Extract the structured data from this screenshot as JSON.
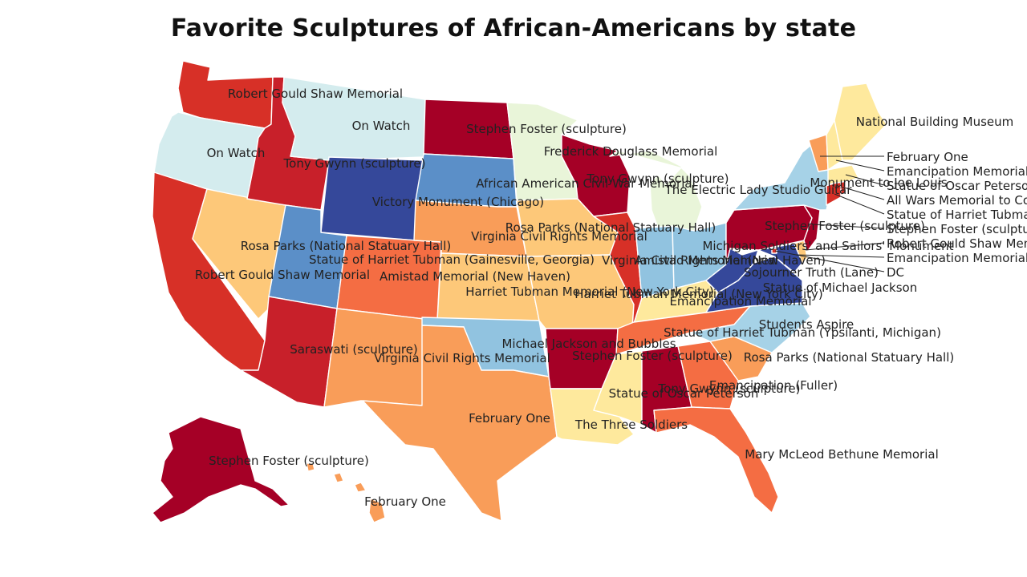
{
  "title": "Favorite Sculptures of African-Americans by state",
  "colors": {
    "dark_red": "#a50026",
    "red": "#d73027",
    "red2": "#c8202a",
    "orange_red": "#f46d43",
    "orange": "#f99d59",
    "light_orange": "#fdc879",
    "pale_yellow": "#fee99d",
    "pale_green": "#e9f5d9",
    "pale_blue": "#d4ecee",
    "light_blue": "#a6d2e7",
    "sky_blue": "#91c3e0",
    "mid_blue": "#5b8fc8",
    "dark_blue": "#35489a"
  },
  "states": {
    "WA": {
      "label": "Robert Gould Shaw Memorial",
      "color": "red"
    },
    "OR": {
      "label": "On Watch",
      "color": "pale_blue"
    },
    "CA": {
      "label": "Robert Gould Shaw Memorial",
      "color": "red"
    },
    "ID": {
      "label": "Tony Gwynn (sculpture)",
      "color": "red2"
    },
    "NV": {
      "label": "Rosa Parks (National Statuary Hall)",
      "color": "light_orange"
    },
    "MT": {
      "label": "On Watch",
      "color": "pale_blue"
    },
    "WY": {
      "label": "Victory Monument (Chicago)",
      "color": "dark_blue"
    },
    "UT": {
      "label": "Statue of Harriet Tubman (Gainesville, Georgia)",
      "color": "mid_blue"
    },
    "AZ": {
      "label": "Saraswati (sculpture)",
      "color": "red2"
    },
    "CO": {
      "label": "Amistad Memorial (New Haven)",
      "color": "orange_red"
    },
    "NM": {
      "label": "Virginia Civil Rights Memorial",
      "color": "orange"
    },
    "ND": {
      "label": "Stephen Foster (sculpture)",
      "color": "dark_red"
    },
    "SD": {
      "label": "African American Civil War Memorial",
      "color": "mid_blue"
    },
    "NE": {
      "label": "Virginia Civil Rights Memorial",
      "color": "orange"
    },
    "KS": {
      "label": "Harriet Tubman Memorial (New York City)",
      "color": "light_orange"
    },
    "OK": {
      "label": "Michael Jackson and Bubbles",
      "color": "sky_blue"
    },
    "TX": {
      "label": "February One",
      "color": "orange"
    },
    "MN": {
      "label": "Frederick Douglass Memorial",
      "color": "pale_green"
    },
    "IA": {
      "label": "Rosa Parks (National Statuary Hall)",
      "color": "light_orange"
    },
    "MO": {
      "label": "Harriet Tubman Memorial (New York City)",
      "color": "light_orange"
    },
    "AR": {
      "label": "Stephen Foster (sculpture)",
      "color": "dark_red"
    },
    "LA": {
      "label": "The Three Soldiers",
      "color": "pale_yellow"
    },
    "WI": {
      "label": "Tony Gwynn (sculpture)",
      "color": "dark_red"
    },
    "IL": {
      "label": "Virginia Civil Rights Memorial",
      "color": "red"
    },
    "MI": {
      "label": "The Electric Lady Studio Guitar",
      "color": "pale_green"
    },
    "IN": {
      "label": "Amistad Memorial (New Haven)",
      "color": "sky_blue"
    },
    "OH": {
      "label": "Michigan Soldiers' and Sailors' Monument",
      "color": "sky_blue"
    },
    "KY": {
      "label": "Emancipation Memorial",
      "color": "pale_yellow"
    },
    "TN": {
      "label": "Statue of Harriet Tubman (Ypsilanti, Michigan)",
      "color": "orange_red"
    },
    "MS": {
      "label": "Statue of Oscar Peterson",
      "color": "pale_yellow"
    },
    "AL": {
      "label": "Tony Gwynn (sculpture)",
      "color": "dark_red"
    },
    "GA": {
      "label": "Emancipation (Fuller)",
      "color": "orange_red"
    },
    "FL": {
      "label": "Mary McLeod Bethune Memorial",
      "color": "orange_red"
    },
    "SC": {
      "label": "Rosa Parks (National Statuary Hall)",
      "color": "orange"
    },
    "NC": {
      "label": "Students Aspire",
      "color": "light_blue"
    },
    "VA": {
      "label": "Statue of Michael Jackson",
      "color": "dark_blue"
    },
    "WV": {
      "label": "Sojourner Truth (Lane)",
      "color": "dark_blue"
    },
    "PA": {
      "label": "Stephen Foster (sculpture)",
      "color": "dark_red"
    },
    "NY": {
      "label": "Monument to Joe Louis",
      "color": "light_blue"
    },
    "ME": {
      "label": "National Building Museum",
      "color": "pale_yellow"
    },
    "VT": {
      "label": "February One",
      "color": "orange"
    },
    "NH": {
      "label": "Emancipation Memorial",
      "color": "pale_yellow"
    },
    "MA": {
      "label": "Statue of Oscar Peterson",
      "color": "pale_yellow"
    },
    "RI": {
      "label": "All Wars Memorial to Colored Soldiers and Sailors",
      "color": "red"
    },
    "CT": {
      "label": "Statue of Harriet Tubman",
      "color": "red"
    },
    "NJ": {
      "label": "Stephen Foster (sculpture)",
      "color": "dark_red"
    },
    "DE": {
      "label": "Robert Gould Shaw Memorial",
      "color": "light_orange"
    },
    "MD": {
      "label": "Emancipation Memorial",
      "color": "dark_blue"
    },
    "DC": {
      "label": "DC",
      "color": "red"
    },
    "AK": {
      "label": "Stephen Foster (sculpture)",
      "color": "dark_red"
    },
    "HI": {
      "label": "February One",
      "color": "orange"
    }
  }
}
